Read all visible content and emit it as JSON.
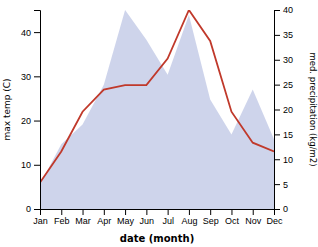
{
  "chart_data": {
    "type": "line",
    "categories": [
      "Jan",
      "Feb",
      "Mar",
      "Apr",
      "May",
      "Jun",
      "Jul",
      "Aug",
      "Sep",
      "Oct",
      "Nov",
      "Dec"
    ],
    "series": [
      {
        "type": "area",
        "color": "#c5cce8",
        "axis": "y2",
        "values": [
          5,
          13,
          17,
          25,
          40,
          34,
          27,
          39,
          22,
          15,
          24,
          14
        ]
      },
      {
        "type": "line",
        "color": "#c0392b",
        "values": [
          6,
          13,
          22,
          27,
          28,
          28,
          34,
          45,
          38,
          22,
          15,
          13
        ]
      }
    ],
    "xlabel": "date (month)",
    "ylabel": "max temp (C)",
    "y2label": "med. precipitation (kg/m2)",
    "ylim": [
      0,
      45
    ],
    "yticks": [
      0,
      10,
      20,
      30,
      40
    ],
    "y2lim": [
      0,
      40
    ],
    "y2ticks": [
      0,
      5,
      10,
      15,
      20,
      25,
      30,
      35,
      40
    ]
  }
}
